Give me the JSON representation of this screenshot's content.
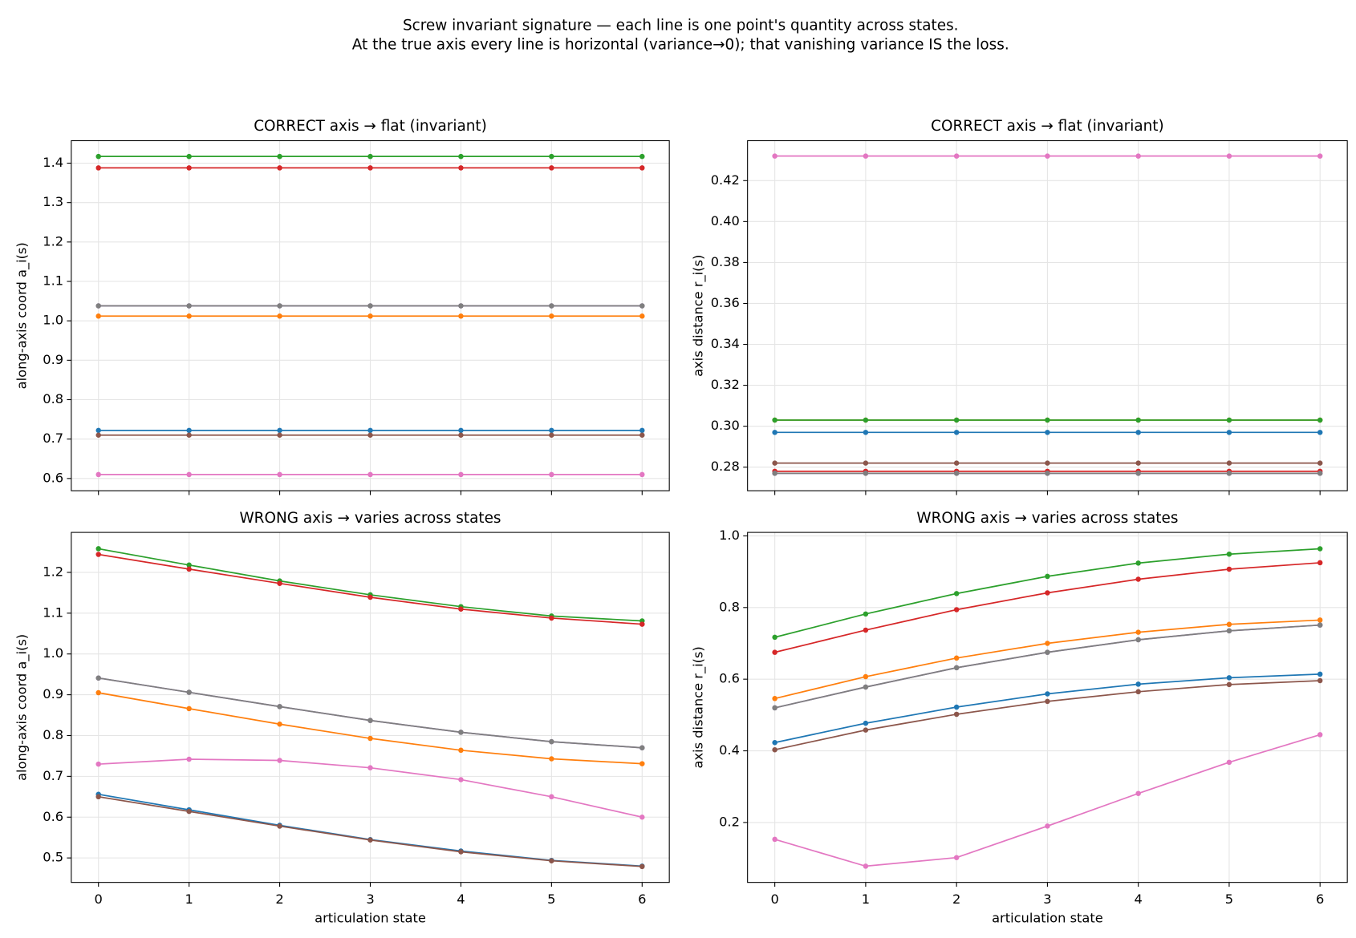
{
  "title_lines": [
    "Screw invariant signature — each line is one point's quantity across states.",
    "At the true axis every line is horizontal (variance→0); that vanishing variance IS the loss."
  ],
  "chart_data": [
    {
      "type": "line",
      "title": "CORRECT axis  →  flat (invariant)",
      "ylabel": "along-axis coord  a_i(s)",
      "xticklabels_visible": false,
      "grid": true,
      "x": [
        0,
        1,
        2,
        3,
        4,
        5,
        6
      ],
      "xlim": [
        -0.3,
        6.3
      ],
      "xticks": [
        0,
        1,
        2,
        3,
        4,
        5,
        6
      ],
      "ylim": [
        0.569,
        1.457
      ],
      "yticks": [
        0.6,
        0.7,
        0.8,
        0.9,
        {
          "value": 1,
          "label": "1.0"
        },
        1.1,
        1.2,
        1.3,
        1.4
      ],
      "series": [
        {
          "color": "#1f77b4",
          "values": [
            0.722,
            0.722,
            0.722,
            0.722,
            0.722,
            0.722,
            0.722
          ]
        },
        {
          "color": "#ff7f0e",
          "values": [
            1.012,
            1.012,
            1.012,
            1.012,
            1.012,
            1.012,
            1.012
          ]
        },
        {
          "color": "#2ca02c",
          "values": [
            1.417,
            1.417,
            1.417,
            1.417,
            1.417,
            1.417,
            1.417
          ]
        },
        {
          "color": "#d62728",
          "values": [
            1.388,
            1.388,
            1.388,
            1.388,
            1.388,
            1.388,
            1.388
          ]
        },
        {
          "color": "#9467bd",
          "values": [
            1.038,
            1.038,
            1.038,
            1.038,
            1.038,
            1.038,
            1.038
          ]
        },
        {
          "color": "#8c564b",
          "values": [
            0.71,
            0.71,
            0.71,
            0.71,
            0.71,
            0.71,
            0.71
          ]
        },
        {
          "color": "#e377c2",
          "values": [
            0.61,
            0.61,
            0.61,
            0.61,
            0.61,
            0.61,
            0.61
          ]
        },
        {
          "color": "#7f7f7f",
          "values": [
            1.038,
            1.038,
            1.038,
            1.038,
            1.038,
            1.038,
            1.038
          ]
        }
      ]
    },
    {
      "type": "line",
      "title": "CORRECT axis  →  flat (invariant)",
      "ylabel": "axis distance  r_i(s)",
      "xticklabels_visible": false,
      "grid": true,
      "x": [
        0,
        1,
        2,
        3,
        4,
        5,
        6
      ],
      "xlim": [
        -0.3,
        6.3
      ],
      "xticks": [
        0,
        1,
        2,
        3,
        4,
        5,
        6
      ],
      "ylim": [
        0.2685,
        0.4395
      ],
      "yticks": [
        0.28,
        {
          "value": 0.3,
          "label": "0.30"
        },
        0.32,
        0.34,
        0.36,
        0.38,
        {
          "value": 0.4,
          "label": "0.40"
        },
        0.42
      ],
      "series": [
        {
          "color": "#1f77b4",
          "values": [
            0.297,
            0.297,
            0.297,
            0.297,
            0.297,
            0.297,
            0.297
          ]
        },
        {
          "color": "#ff7f0e",
          "values": [
            0.303,
            0.303,
            0.303,
            0.303,
            0.303,
            0.303,
            0.303
          ]
        },
        {
          "color": "#2ca02c",
          "values": [
            0.303,
            0.303,
            0.303,
            0.303,
            0.303,
            0.303,
            0.303
          ]
        },
        {
          "color": "#d62728",
          "values": [
            0.278,
            0.278,
            0.278,
            0.278,
            0.278,
            0.278,
            0.278
          ]
        },
        {
          "color": "#9467bd",
          "values": [
            0.277,
            0.277,
            0.277,
            0.277,
            0.277,
            0.277,
            0.277
          ]
        },
        {
          "color": "#8c564b",
          "values": [
            0.282,
            0.282,
            0.282,
            0.282,
            0.282,
            0.282,
            0.282
          ]
        },
        {
          "color": "#e377c2",
          "values": [
            0.432,
            0.432,
            0.432,
            0.432,
            0.432,
            0.432,
            0.432
          ]
        },
        {
          "color": "#7f7f7f",
          "values": [
            0.277,
            0.277,
            0.277,
            0.277,
            0.277,
            0.277,
            0.277
          ]
        }
      ]
    },
    {
      "type": "line",
      "title": "WRONG axis  →  varies across states",
      "ylabel": "along-axis coord  a_i(s)",
      "xlabel": "articulation state",
      "xticklabels_visible": true,
      "grid": true,
      "x": [
        0,
        1,
        2,
        3,
        4,
        5,
        6
      ],
      "xlim": [
        -0.3,
        6.3
      ],
      "xticks": [
        0,
        1,
        2,
        3,
        4,
        5,
        6
      ],
      "ylim": [
        0.44,
        1.298
      ],
      "yticks": [
        0.5,
        0.6,
        0.7,
        0.8,
        0.9,
        {
          "value": 1,
          "label": "1.0"
        },
        1.1,
        1.2
      ],
      "series": [
        {
          "color": "#1f77b4",
          "values": [
            0.656,
            0.618,
            0.58,
            0.545,
            0.517,
            0.494,
            0.48
          ]
        },
        {
          "color": "#ff7f0e",
          "values": [
            0.905,
            0.866,
            0.828,
            0.793,
            0.764,
            0.743,
            0.731
          ]
        },
        {
          "color": "#2ca02c",
          "values": [
            1.258,
            1.218,
            1.179,
            1.145,
            1.116,
            1.093,
            1.081
          ]
        },
        {
          "color": "#d62728",
          "values": [
            1.244,
            1.208,
            1.173,
            1.139,
            1.11,
            1.088,
            1.073
          ]
        },
        {
          "color": "#9467bd",
          "values": [
            0.941,
            0.906,
            0.871,
            0.837,
            0.808,
            0.785,
            0.77
          ]
        },
        {
          "color": "#8c564b",
          "values": [
            0.65,
            0.614,
            0.578,
            0.544,
            0.515,
            0.493,
            0.479
          ]
        },
        {
          "color": "#e377c2",
          "values": [
            0.73,
            0.742,
            0.739,
            0.721,
            0.692,
            0.65,
            0.6
          ]
        },
        {
          "color": "#7f7f7f",
          "values": [
            0.941,
            0.906,
            0.871,
            0.837,
            0.808,
            0.785,
            0.77
          ]
        }
      ]
    },
    {
      "type": "line",
      "title": "WRONG axis  →  varies across states",
      "ylabel": "axis distance  r_i(s)",
      "xlabel": "articulation state",
      "xticklabels_visible": true,
      "grid": true,
      "x": [
        0,
        1,
        2,
        3,
        4,
        5,
        6
      ],
      "xlim": [
        -0.3,
        6.3
      ],
      "xticks": [
        0,
        1,
        2,
        3,
        4,
        5,
        6
      ],
      "ylim": [
        0.0327,
        1.0097
      ],
      "yticks": [
        0.2,
        0.4,
        0.6,
        0.8,
        {
          "value": 1,
          "label": "1.0"
        }
      ],
      "series": [
        {
          "color": "#1f77b4",
          "values": [
            0.423,
            0.477,
            0.522,
            0.559,
            0.586,
            0.604,
            0.614
          ]
        },
        {
          "color": "#ff7f0e",
          "values": [
            0.546,
            0.607,
            0.659,
            0.7,
            0.731,
            0.753,
            0.765
          ]
        },
        {
          "color": "#2ca02c",
          "values": [
            0.717,
            0.782,
            0.839,
            0.887,
            0.924,
            0.949,
            0.964
          ]
        },
        {
          "color": "#d62728",
          "values": [
            0.675,
            0.737,
            0.794,
            0.841,
            0.879,
            0.907,
            0.925
          ]
        },
        {
          "color": "#9467bd",
          "values": [
            0.52,
            0.578,
            0.632,
            0.675,
            0.71,
            0.735,
            0.751
          ]
        },
        {
          "color": "#8c564b",
          "values": [
            0.403,
            0.458,
            0.502,
            0.538,
            0.565,
            0.585,
            0.596
          ]
        },
        {
          "color": "#e377c2",
          "values": [
            0.153,
            0.078,
            0.102,
            0.19,
            0.281,
            0.368,
            0.445
          ]
        },
        {
          "color": "#7f7f7f",
          "values": [
            0.52,
            0.578,
            0.632,
            0.675,
            0.71,
            0.735,
            0.751
          ]
        }
      ]
    }
  ]
}
